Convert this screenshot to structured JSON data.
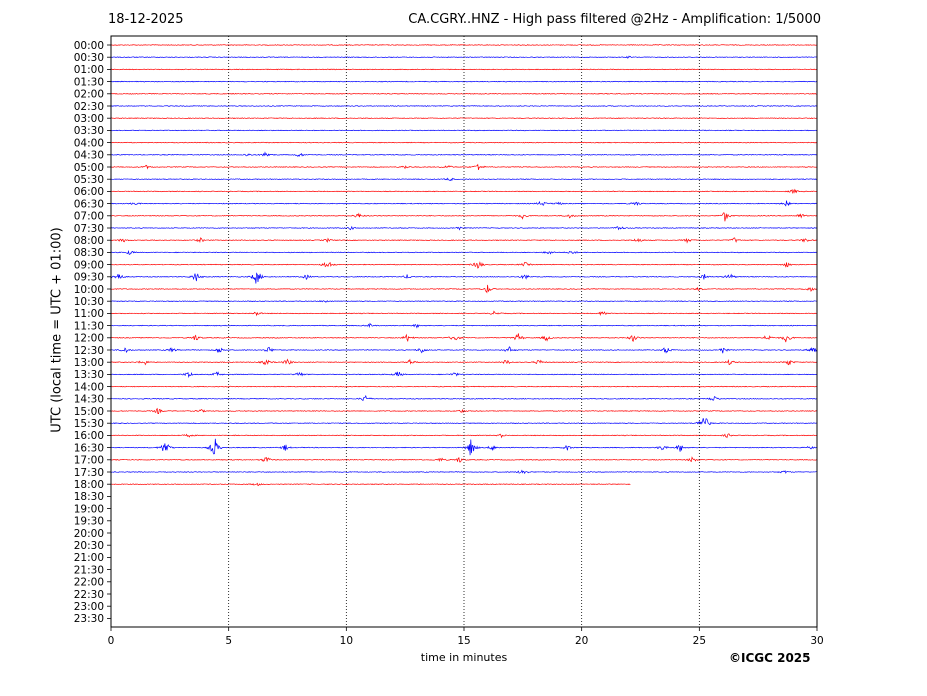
{
  "header": {
    "date": "18-12-2025",
    "title": "CA.CGRY..HNZ - High pass filtered @2Hz - Amplification: 1/5000"
  },
  "footer": {
    "copyright": "©ICGC 2025"
  },
  "chart_data": {
    "type": "line",
    "title": "CA.CGRY..HNZ - High pass filtered @2Hz - Amplification: 1/5000",
    "xlabel": "time in minutes",
    "ylabel": "UTC (local time = UTC + 01:00)",
    "xlim": [
      0,
      30
    ],
    "x_ticks": [
      "0",
      "5",
      "10",
      "15",
      "20",
      "25",
      "30"
    ],
    "y_ticks": [
      "00:00",
      "00:30",
      "01:00",
      "01:30",
      "02:00",
      "02:30",
      "03:00",
      "03:30",
      "04:00",
      "04:30",
      "05:00",
      "05:30",
      "06:00",
      "06:30",
      "07:00",
      "07:30",
      "08:00",
      "08:30",
      "09:00",
      "09:30",
      "10:00",
      "10:30",
      "11:00",
      "11:30",
      "12:00",
      "12:30",
      "13:00",
      "13:30",
      "14:00",
      "14:30",
      "15:00",
      "15:30",
      "16:00",
      "16:30",
      "17:00",
      "17:30",
      "18:00",
      "18:30",
      "19:00",
      "19:30",
      "20:00",
      "20:30",
      "21:00",
      "21:30",
      "22:00",
      "22:30",
      "23:00",
      "23:30"
    ],
    "grid": "vertical dotted lines at 5-minute intervals",
    "trace_colors": [
      "#ff0000",
      "#0000ff"
    ],
    "last_trace_end_minute": 22.1,
    "events": [
      {
        "row": "00:30",
        "minute": 22.0,
        "amp": 0.15
      },
      {
        "row": "04:30",
        "minute": 5.8,
        "amp": 0.3
      },
      {
        "row": "04:30",
        "minute": 6.6,
        "amp": 0.6
      },
      {
        "row": "04:30",
        "minute": 8.0,
        "amp": 0.4
      },
      {
        "row": "05:00",
        "minute": 1.5,
        "amp": 0.3
      },
      {
        "row": "05:00",
        "minute": 12.5,
        "amp": 0.3
      },
      {
        "row": "05:00",
        "minute": 14.3,
        "amp": 0.4
      },
      {
        "row": "05:00",
        "minute": 15.6,
        "amp": 0.7
      },
      {
        "row": "05:30",
        "minute": 14.4,
        "amp": 0.3
      },
      {
        "row": "06:00",
        "minute": 29.0,
        "amp": 0.4
      },
      {
        "row": "06:30",
        "minute": 1.0,
        "amp": 0.3
      },
      {
        "row": "06:30",
        "minute": 18.3,
        "amp": 0.6
      },
      {
        "row": "06:30",
        "minute": 19.0,
        "amp": 0.3
      },
      {
        "row": "06:30",
        "minute": 22.3,
        "amp": 0.5
      },
      {
        "row": "06:30",
        "minute": 28.7,
        "amp": 0.5
      },
      {
        "row": "07:00",
        "minute": 10.5,
        "amp": 0.5
      },
      {
        "row": "07:00",
        "minute": 17.5,
        "amp": 0.5
      },
      {
        "row": "07:00",
        "minute": 19.5,
        "amp": 0.4
      },
      {
        "row": "07:00",
        "minute": 26.1,
        "amp": 1.0
      },
      {
        "row": "07:00",
        "minute": 29.3,
        "amp": 0.5
      },
      {
        "row": "07:30",
        "minute": 10.2,
        "amp": 0.3
      },
      {
        "row": "07:30",
        "minute": 14.8,
        "amp": 0.3
      },
      {
        "row": "07:30",
        "minute": 21.6,
        "amp": 0.5
      },
      {
        "row": "08:00",
        "minute": 0.5,
        "amp": 0.4
      },
      {
        "row": "08:00",
        "minute": 3.8,
        "amp": 0.4
      },
      {
        "row": "08:00",
        "minute": 9.2,
        "amp": 0.3
      },
      {
        "row": "08:00",
        "minute": 22.4,
        "amp": 0.5
      },
      {
        "row": "08:00",
        "minute": 24.5,
        "amp": 0.4
      },
      {
        "row": "08:00",
        "minute": 26.5,
        "amp": 0.5
      },
      {
        "row": "08:00",
        "minute": 29.5,
        "amp": 0.4
      },
      {
        "row": "08:30",
        "minute": 0.8,
        "amp": 0.4
      },
      {
        "row": "08:30",
        "minute": 18.6,
        "amp": 0.4
      },
      {
        "row": "08:30",
        "minute": 19.6,
        "amp": 0.4
      },
      {
        "row": "09:00",
        "minute": 9.2,
        "amp": 1.0
      },
      {
        "row": "09:00",
        "minute": 15.6,
        "amp": 0.9
      },
      {
        "row": "09:00",
        "minute": 17.6,
        "amp": 0.4
      },
      {
        "row": "09:00",
        "minute": 28.7,
        "amp": 0.5
      },
      {
        "row": "09:30",
        "minute": 0.3,
        "amp": 1.0
      },
      {
        "row": "09:30",
        "minute": 3.6,
        "amp": 1.0
      },
      {
        "row": "09:30",
        "minute": 6.2,
        "amp": 1.6
      },
      {
        "row": "09:30",
        "minute": 8.3,
        "amp": 0.4
      },
      {
        "row": "09:30",
        "minute": 12.6,
        "amp": 0.4
      },
      {
        "row": "09:30",
        "minute": 17.6,
        "amp": 0.5
      },
      {
        "row": "09:30",
        "minute": 25.2,
        "amp": 0.5
      },
      {
        "row": "09:30",
        "minute": 26.3,
        "amp": 0.6
      },
      {
        "row": "10:00",
        "minute": 16.0,
        "amp": 0.8
      },
      {
        "row": "10:00",
        "minute": 25.0,
        "amp": 0.3
      },
      {
        "row": "10:00",
        "minute": 29.7,
        "amp": 0.5
      },
      {
        "row": "10:30",
        "minute": 9.1,
        "amp": 0.3
      },
      {
        "row": "11:00",
        "minute": 6.2,
        "amp": 0.4
      },
      {
        "row": "11:00",
        "minute": 16.3,
        "amp": 0.4
      },
      {
        "row": "11:00",
        "minute": 20.9,
        "amp": 0.5
      },
      {
        "row": "11:30",
        "minute": 11.0,
        "amp": 0.3
      },
      {
        "row": "11:30",
        "minute": 13.0,
        "amp": 0.3
      },
      {
        "row": "12:00",
        "minute": 3.6,
        "amp": 0.6
      },
      {
        "row": "12:00",
        "minute": 12.6,
        "amp": 0.7
      },
      {
        "row": "12:00",
        "minute": 14.6,
        "amp": 0.8
      },
      {
        "row": "12:00",
        "minute": 17.3,
        "amp": 0.8
      },
      {
        "row": "12:00",
        "minute": 18.5,
        "amp": 0.6
      },
      {
        "row": "12:00",
        "minute": 22.2,
        "amp": 0.7
      },
      {
        "row": "12:00",
        "minute": 27.9,
        "amp": 0.7
      },
      {
        "row": "12:00",
        "minute": 28.7,
        "amp": 0.9
      },
      {
        "row": "12:30",
        "minute": 0.6,
        "amp": 0.6
      },
      {
        "row": "12:30",
        "minute": 2.6,
        "amp": 0.5
      },
      {
        "row": "12:30",
        "minute": 4.6,
        "amp": 0.6
      },
      {
        "row": "12:30",
        "minute": 6.7,
        "amp": 0.6
      },
      {
        "row": "12:30",
        "minute": 13.2,
        "amp": 0.6
      },
      {
        "row": "12:30",
        "minute": 16.9,
        "amp": 0.7
      },
      {
        "row": "12:30",
        "minute": 23.6,
        "amp": 0.7
      },
      {
        "row": "12:30",
        "minute": 26.0,
        "amp": 0.6
      },
      {
        "row": "12:30",
        "minute": 29.8,
        "amp": 0.7
      },
      {
        "row": "13:00",
        "minute": 1.4,
        "amp": 0.6
      },
      {
        "row": "13:00",
        "minute": 6.6,
        "amp": 0.6
      },
      {
        "row": "13:00",
        "minute": 7.5,
        "amp": 0.6
      },
      {
        "row": "13:00",
        "minute": 12.7,
        "amp": 0.5
      },
      {
        "row": "13:00",
        "minute": 16.8,
        "amp": 0.5
      },
      {
        "row": "13:00",
        "minute": 18.2,
        "amp": 0.5
      },
      {
        "row": "13:00",
        "minute": 26.3,
        "amp": 0.5
      },
      {
        "row": "13:00",
        "minute": 28.8,
        "amp": 0.6
      },
      {
        "row": "13:30",
        "minute": 3.3,
        "amp": 0.6
      },
      {
        "row": "13:30",
        "minute": 4.5,
        "amp": 0.5
      },
      {
        "row": "13:30",
        "minute": 8.0,
        "amp": 0.5
      },
      {
        "row": "13:30",
        "minute": 12.2,
        "amp": 0.6
      },
      {
        "row": "13:30",
        "minute": 14.6,
        "amp": 0.4
      },
      {
        "row": "14:30",
        "minute": 10.8,
        "amp": 0.8
      },
      {
        "row": "14:30",
        "minute": 25.6,
        "amp": 0.6
      },
      {
        "row": "15:00",
        "minute": 2.0,
        "amp": 0.5
      },
      {
        "row": "15:00",
        "minute": 3.8,
        "amp": 0.3
      },
      {
        "row": "15:00",
        "minute": 14.9,
        "amp": 0.3
      },
      {
        "row": "15:30",
        "minute": 25.2,
        "amp": 2.0
      },
      {
        "row": "16:00",
        "minute": 3.3,
        "amp": 0.3
      },
      {
        "row": "16:00",
        "minute": 16.6,
        "amp": 0.3
      },
      {
        "row": "16:00",
        "minute": 26.2,
        "amp": 0.4
      },
      {
        "row": "16:30",
        "minute": 2.3,
        "amp": 1.6
      },
      {
        "row": "16:30",
        "minute": 4.4,
        "amp": 2.0
      },
      {
        "row": "16:30",
        "minute": 7.4,
        "amp": 0.6
      },
      {
        "row": "16:30",
        "minute": 15.3,
        "amp": 1.8
      },
      {
        "row": "16:30",
        "minute": 16.2,
        "amp": 0.5
      },
      {
        "row": "16:30",
        "minute": 19.4,
        "amp": 0.5
      },
      {
        "row": "16:30",
        "minute": 23.4,
        "amp": 0.6
      },
      {
        "row": "16:30",
        "minute": 24.2,
        "amp": 0.8
      },
      {
        "row": "16:30",
        "minute": 29.7,
        "amp": 0.3
      },
      {
        "row": "17:00",
        "minute": 6.6,
        "amp": 0.7
      },
      {
        "row": "17:00",
        "minute": 14.0,
        "amp": 0.4
      },
      {
        "row": "17:00",
        "minute": 14.8,
        "amp": 0.6
      },
      {
        "row": "17:00",
        "minute": 24.7,
        "amp": 0.5
      },
      {
        "row": "17:30",
        "minute": 17.5,
        "amp": 0.6
      },
      {
        "row": "17:30",
        "minute": 28.6,
        "amp": 0.3
      },
      {
        "row": "18:00",
        "minute": 6.2,
        "amp": 0.3
      }
    ]
  }
}
